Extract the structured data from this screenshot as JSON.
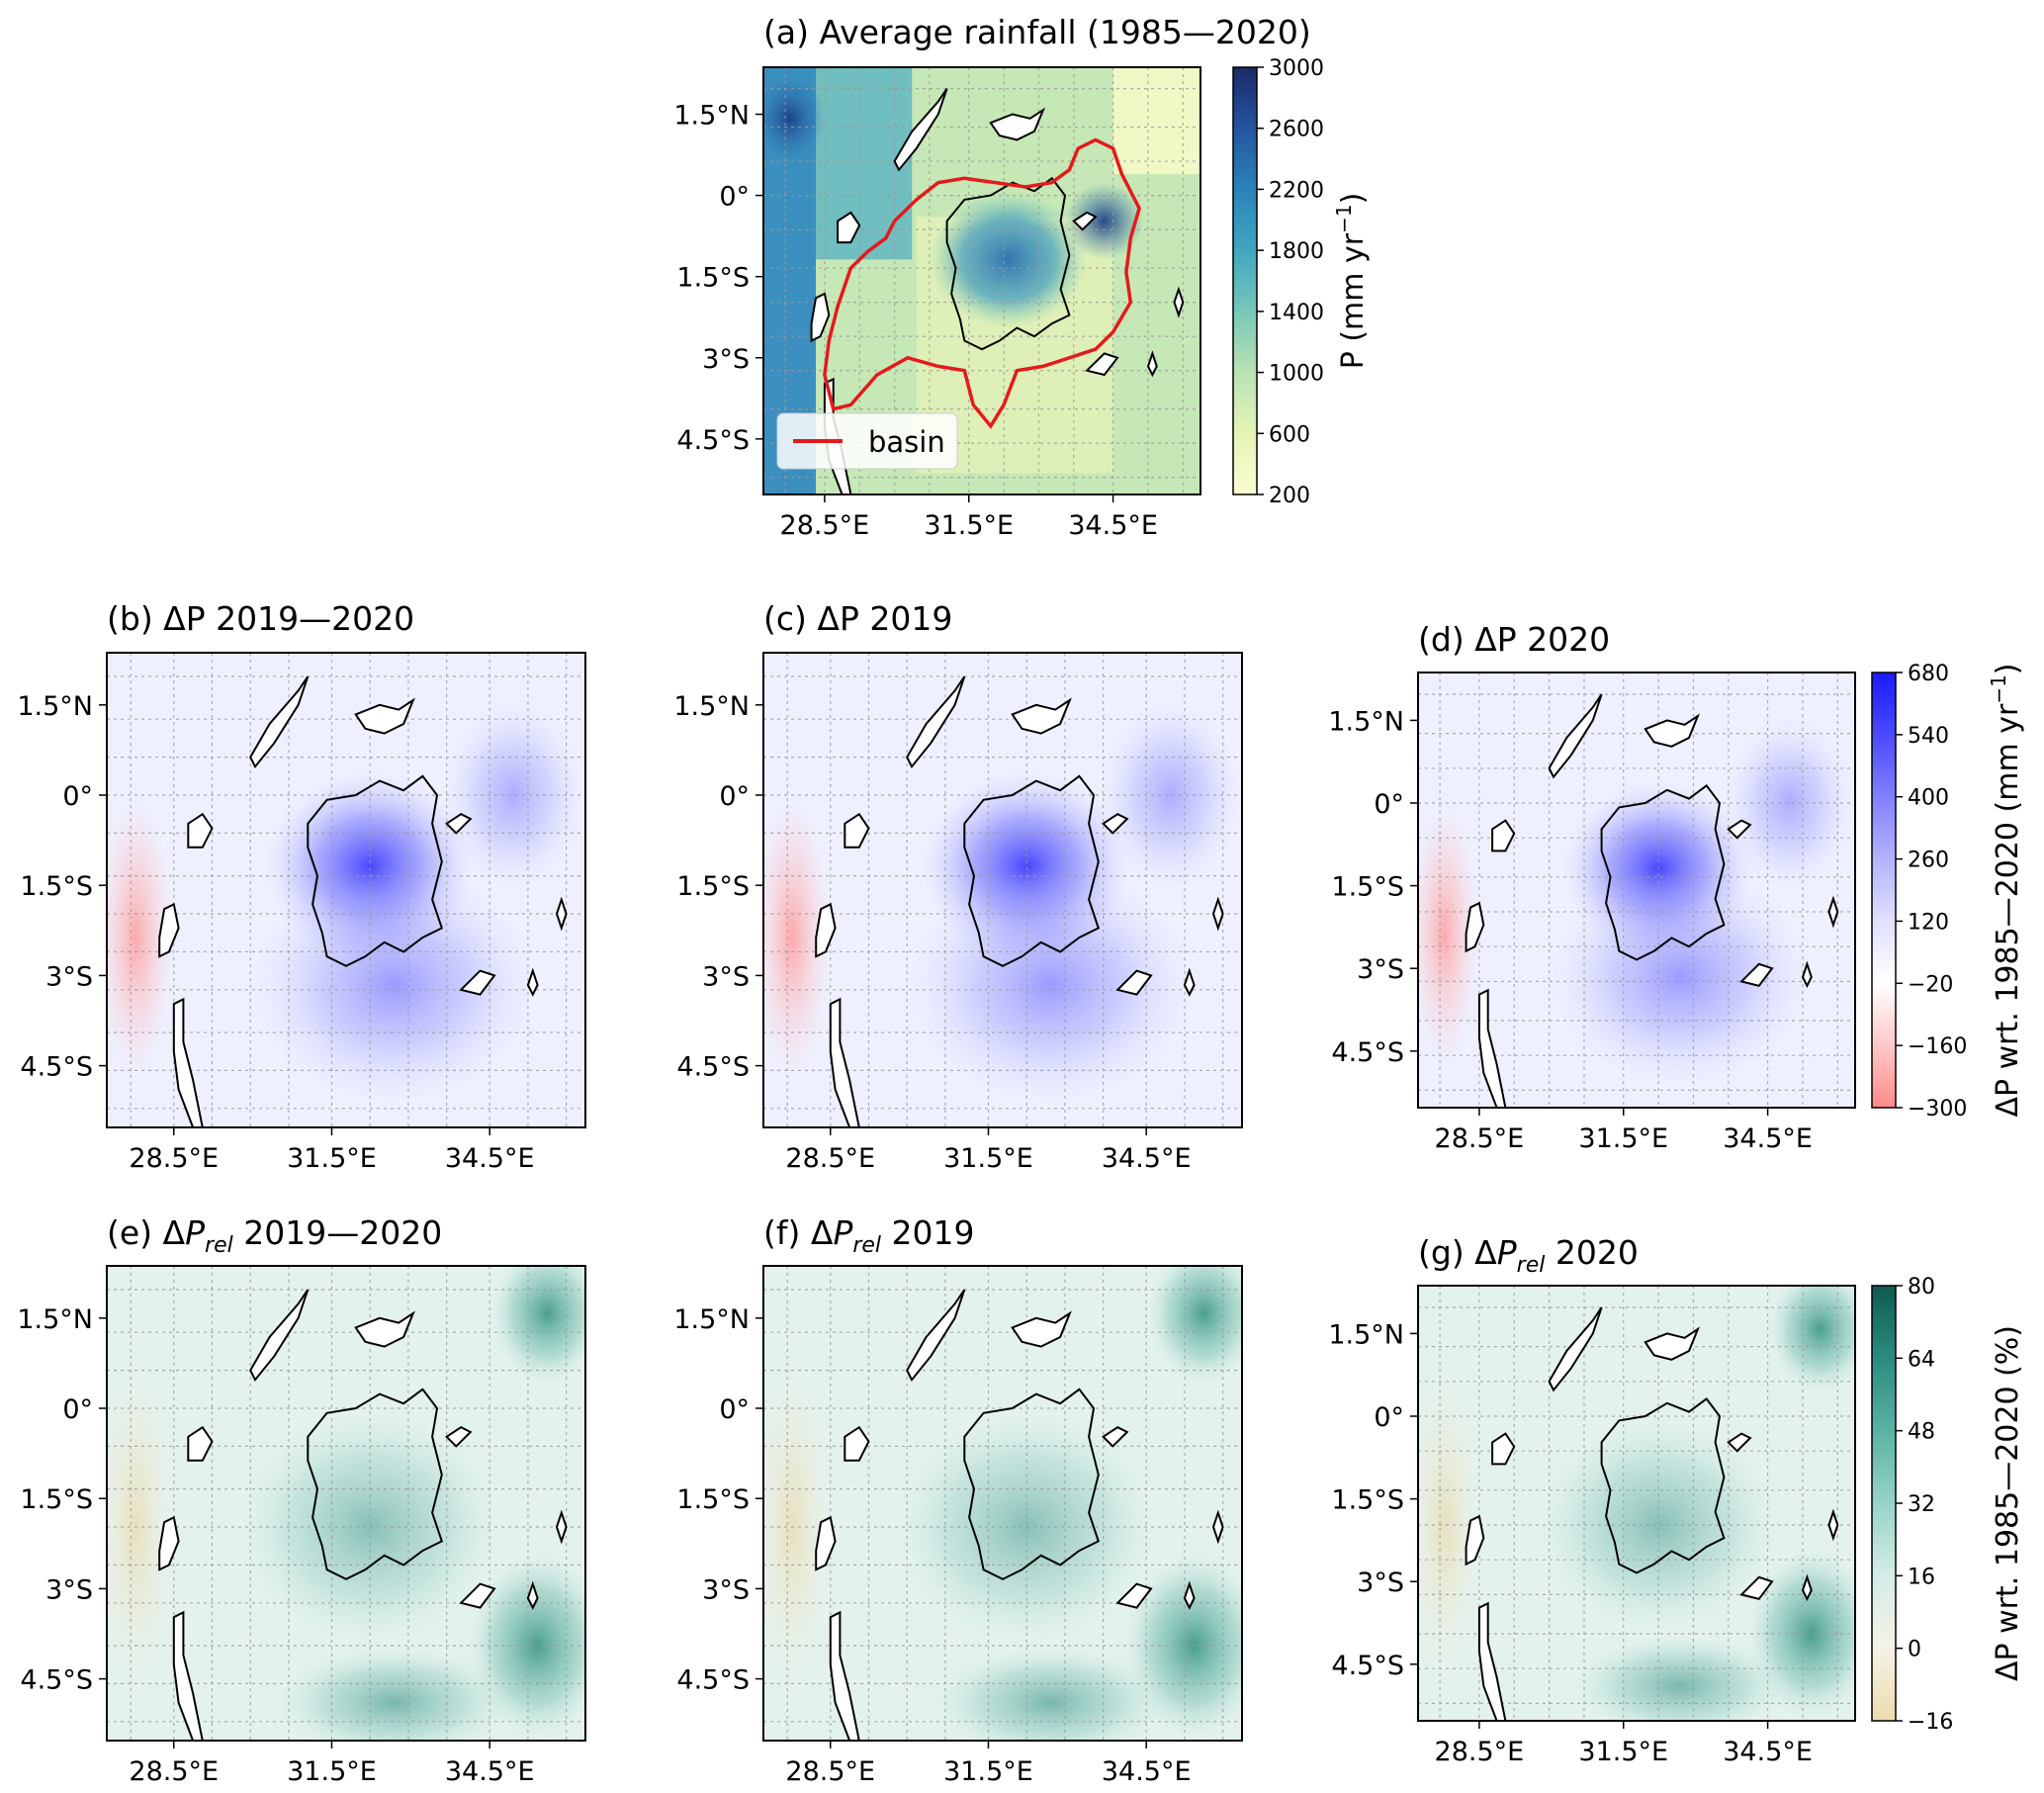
{
  "figure": {
    "panels": [
      {
        "id": "a",
        "title": "(a) Average rainfall (1985—2020)",
        "palette": "rain",
        "legend_label": "basin",
        "basin_color": "#e41a1c"
      },
      {
        "id": "b",
        "title": "(b) ΔP 2019—2020",
        "palette": "bwr"
      },
      {
        "id": "c",
        "title": "(c) ΔP 2019",
        "palette": "bwr"
      },
      {
        "id": "d",
        "title": "(d) ΔP 2020",
        "palette": "bwr"
      },
      {
        "id": "e",
        "title_pre": "(e) Δ",
        "title_sym": "P",
        "title_sub": "rel",
        "title_post": " 2019—2020",
        "palette": "brbg"
      },
      {
        "id": "f",
        "title_pre": "(f) Δ",
        "title_sym": "P",
        "title_sub": "rel",
        "title_post": " 2019",
        "palette": "brbg"
      },
      {
        "id": "g",
        "title_pre": "(g) Δ",
        "title_sym": "P",
        "title_sub": "rel",
        "title_post": " 2020",
        "palette": "brbg"
      }
    ],
    "lat_ticks": [
      "1.5°N",
      "0°",
      "1.5°S",
      "3°S",
      "4.5°S"
    ],
    "lon_ticks": [
      "28.5°E",
      "31.5°E",
      "34.5°E"
    ],
    "colorbars": {
      "rain": {
        "ticks": [
          "3000",
          "2600",
          "2200",
          "1800",
          "1400",
          "1000",
          "600",
          "200"
        ],
        "label_pre": "P (mm yr",
        "label_sup": "−1",
        "label_post": ")",
        "stops": [
          "#1b2a68",
          "#24559e",
          "#2a83b8",
          "#41a6c1",
          "#77c7b9",
          "#b9e2b3",
          "#e4f4b4",
          "#fbfdd1"
        ]
      },
      "bwr": {
        "ticks": [
          "680",
          "540",
          "400",
          "260",
          "120",
          "−20",
          "−160",
          "−300"
        ],
        "label_pre": "ΔP wrt. 1985—2020 (mm yr",
        "label_sup": "−1",
        "label_post": ")",
        "stops": [
          "#1a1aff",
          "#4a4aff",
          "#8080ff",
          "#b3b3ff",
          "#e0e0ff",
          "#ffffff",
          "#ffc8c8",
          "#ff8a8a"
        ]
      },
      "brbg": {
        "ticks": [
          "80",
          "64",
          "48",
          "32",
          "16",
          "0",
          "−16"
        ],
        "label": "ΔP wrt. 1985—2020 (%)",
        "stops": [
          "#0f5a4f",
          "#2a8c7e",
          "#5ab2a3",
          "#98d3c7",
          "#d3ede8",
          "#f5f2e6",
          "#eddcad"
        ]
      }
    }
  }
}
